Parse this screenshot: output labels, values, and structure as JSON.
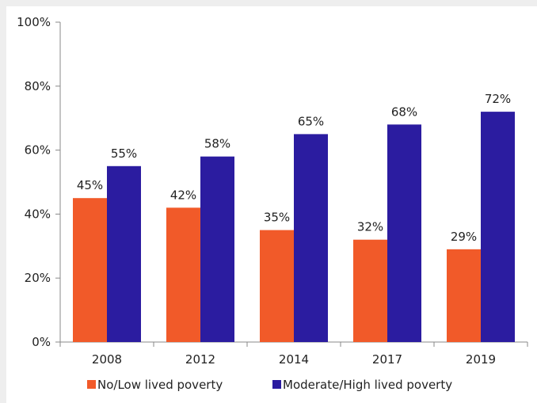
{
  "chart_data": {
    "type": "bar",
    "categories": [
      "2008",
      "2012",
      "2014",
      "2017",
      "2019"
    ],
    "series": [
      {
        "name": "No/Low lived poverty",
        "color": "#f15a29",
        "values": [
          45,
          42,
          35,
          32,
          29
        ],
        "labels": [
          "45%",
          "42%",
          "35%",
          "32%",
          "29%"
        ]
      },
      {
        "name": "Moderate/High lived poverty",
        "color": "#2b1ca0",
        "values": [
          55,
          58,
          65,
          68,
          72
        ],
        "labels": [
          "55%",
          "58%",
          "65%",
          "68%",
          "72%"
        ]
      }
    ],
    "y_ticks": [
      "0%",
      "20%",
      "40%",
      "60%",
      "80%",
      "100%"
    ],
    "ylim": [
      0,
      100
    ],
    "grid": false,
    "legend_position": "bottom"
  }
}
